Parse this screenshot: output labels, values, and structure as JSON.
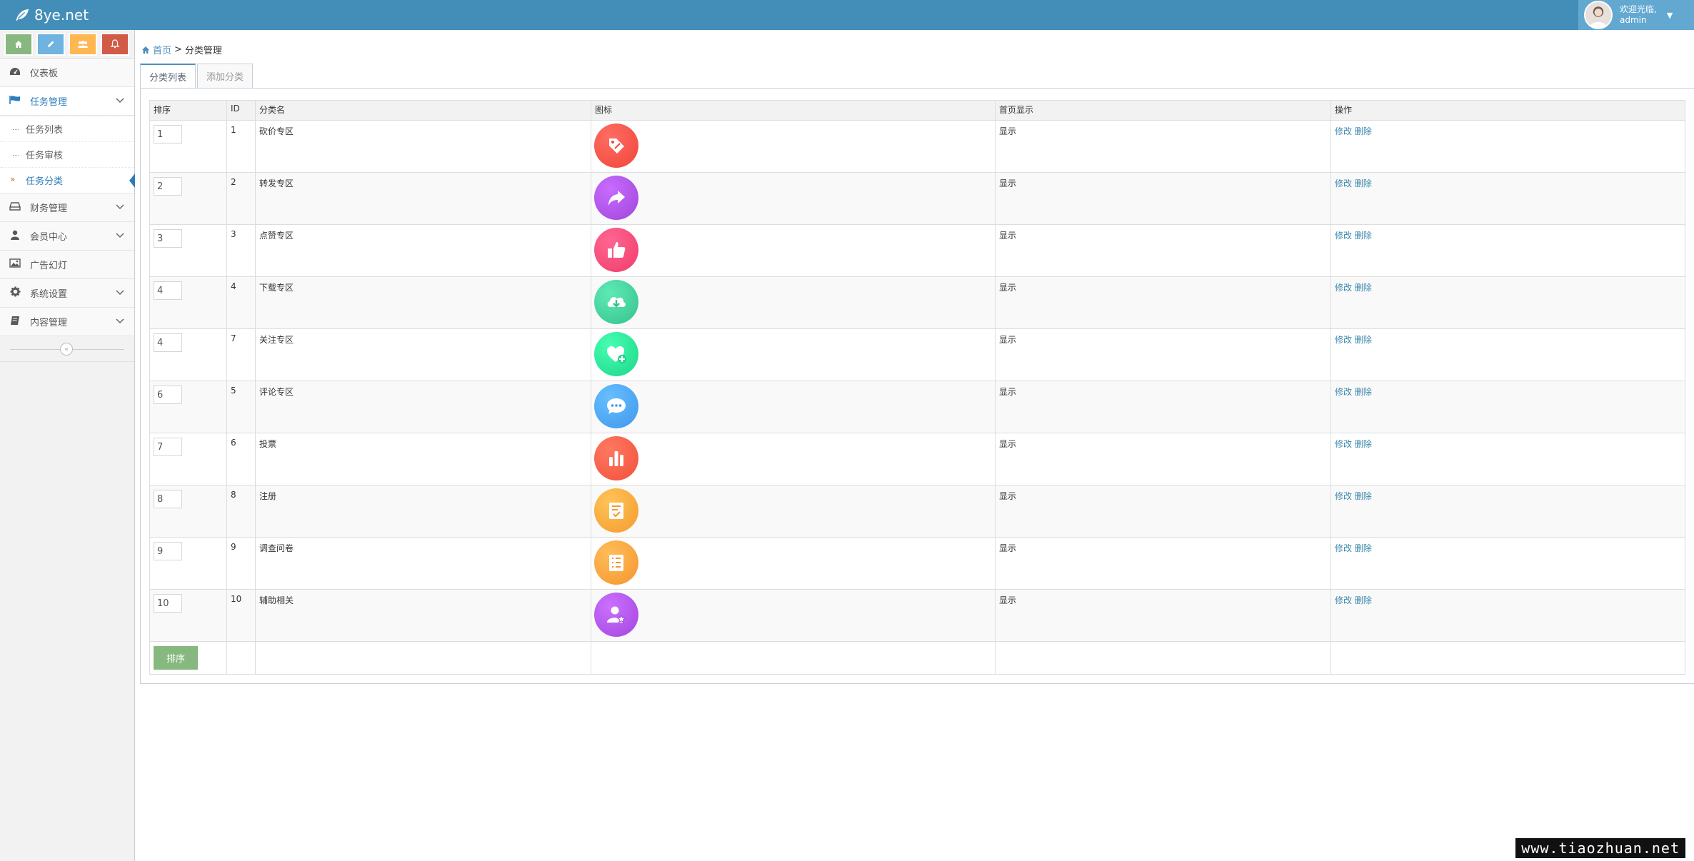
{
  "brand": {
    "name": "8ye.net"
  },
  "user": {
    "greeting": "欢迎光临,",
    "name": "admin"
  },
  "shortcuts": [
    {
      "icon": "home-icon",
      "color": "#87b87f"
    },
    {
      "icon": "pencil-icon",
      "color": "#6fb3e0"
    },
    {
      "icon": "users-icon",
      "color": "#ffb752"
    },
    {
      "icon": "bell-icon",
      "color": "#d15b47"
    }
  ],
  "sidebar": {
    "dashboard": "仪表板",
    "task_mgmt": "任务管理",
    "task_list": "任务列表",
    "task_review": "任务审核",
    "task_category": "任务分类",
    "finance": "财务管理",
    "members": "会员中心",
    "ads": "广告幻灯",
    "settings": "系统设置",
    "content": "内容管理"
  },
  "breadcrumb": {
    "home": "首页",
    "sep": ">",
    "current": "分类管理"
  },
  "tabs": {
    "list": "分类列表",
    "add": "添加分类"
  },
  "table": {
    "headers": {
      "sort": "排序",
      "id": "ID",
      "name": "分类名",
      "icon": "图标",
      "home_display": "首页显示",
      "ops": "操作"
    },
    "rows": [
      {
        "sort": "1",
        "id": "1",
        "name": "砍价专区",
        "display": "显示",
        "edit": "修改",
        "del": "删除",
        "icon": "tag-icon",
        "color": "#f0453a"
      },
      {
        "sort": "2",
        "id": "2",
        "name": "转发专区",
        "display": "显示",
        "edit": "修改",
        "del": "删除",
        "icon": "share-icon",
        "color": "#a044dc"
      },
      {
        "sort": "3",
        "id": "3",
        "name": "点赞专区",
        "display": "显示",
        "edit": "修改",
        "del": "删除",
        "icon": "thumbs-up-icon",
        "color": "#f03d6a"
      },
      {
        "sort": "4",
        "id": "4",
        "name": "下载专区",
        "display": "显示",
        "edit": "修改",
        "del": "删除",
        "icon": "cloud-download-icon",
        "color": "#36c28c"
      },
      {
        "sort": "4",
        "id": "7",
        "name": "关注专区",
        "display": "显示",
        "edit": "修改",
        "del": "删除",
        "icon": "heart-plus-icon",
        "color": "#1ed68a"
      },
      {
        "sort": "6",
        "id": "5",
        "name": "评论专区",
        "display": "显示",
        "edit": "修改",
        "del": "删除",
        "icon": "chat-icon",
        "color": "#3f97ec"
      },
      {
        "sort": "7",
        "id": "6",
        "name": "投票",
        "display": "显示",
        "edit": "修改",
        "del": "删除",
        "icon": "bar-chart-icon",
        "color": "#f2503a"
      },
      {
        "sort": "8",
        "id": "8",
        "name": "注册",
        "display": "显示",
        "edit": "修改",
        "del": "删除",
        "icon": "form-check-icon",
        "color": "#f59b2f"
      },
      {
        "sort": "9",
        "id": "9",
        "name": "调查问卷",
        "display": "显示",
        "edit": "修改",
        "del": "删除",
        "icon": "survey-list-icon",
        "color": "#f59530"
      },
      {
        "sort": "10",
        "id": "10",
        "name": "辅助相关",
        "display": "显示",
        "edit": "修改",
        "del": "删除",
        "icon": "user-star-icon",
        "color": "#a347de"
      }
    ],
    "sort_button": "排序"
  },
  "watermark": "www.tiaozhuan.net"
}
